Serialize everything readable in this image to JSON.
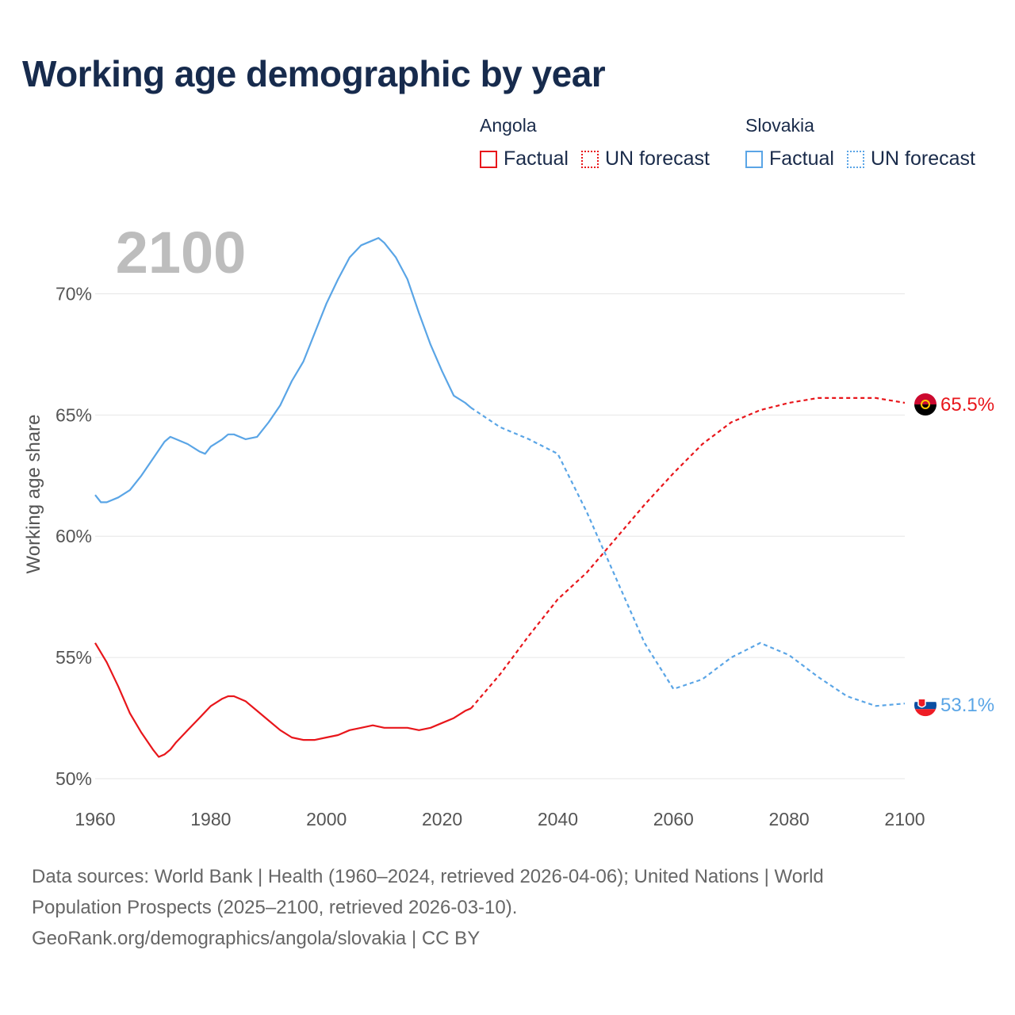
{
  "title": "Working age demographic by year",
  "legend": {
    "angola": {
      "country": "Angola",
      "factual": "Factual",
      "forecast": "UN forecast",
      "color": "#e8161b"
    },
    "slovakia": {
      "country": "Slovakia",
      "factual": "Factual",
      "forecast": "UN forecast",
      "color": "#5aa5e6"
    }
  },
  "year_watermark": "2100",
  "sources": {
    "line1": "Data sources: World Bank | Health (1960–2024, retrieved 2026-04-06); United Nations | World",
    "line2": "Population Prospects (2025–2100, retrieved 2026-03-10).",
    "line3": "GeoRank.org/demographics/angola/slovakia | CC BY"
  },
  "chart_data": {
    "type": "line",
    "title": "Working age demographic by year",
    "xlabel": "",
    "ylabel": "Working age share",
    "xlim": [
      1960,
      2100
    ],
    "ylim": [
      50,
      72.5
    ],
    "x_ticks": [
      "1960",
      "1980",
      "2000",
      "2020",
      "2040",
      "2060",
      "2080",
      "2100"
    ],
    "y_ticks": [
      "50%",
      "55%",
      "60%",
      "65%",
      "70%"
    ],
    "grid": true,
    "series": [
      {
        "name": "Angola",
        "color": "#e8161b",
        "end_label": "65.5%",
        "factual": {
          "x": [
            1960,
            1962,
            1964,
            1966,
            1968,
            1970,
            1971,
            1972,
            1973,
            1974,
            1976,
            1978,
            1980,
            1982,
            1983,
            1984,
            1986,
            1988,
            1990,
            1992,
            1994,
            1996,
            1998,
            2000,
            2002,
            2004,
            2006,
            2008,
            2010,
            2012,
            2014,
            2016,
            2018,
            2020,
            2022,
            2024,
            2025
          ],
          "y": [
            55.6,
            54.8,
            53.8,
            52.7,
            51.9,
            51.2,
            50.9,
            51.0,
            51.2,
            51.5,
            52.0,
            52.5,
            53.0,
            53.3,
            53.4,
            53.4,
            53.2,
            52.8,
            52.4,
            52.0,
            51.7,
            51.6,
            51.6,
            51.7,
            51.8,
            52.0,
            52.1,
            52.2,
            52.1,
            52.1,
            52.1,
            52.0,
            52.1,
            52.3,
            52.5,
            52.8,
            52.9
          ]
        },
        "forecast": {
          "x": [
            2025,
            2030,
            2035,
            2040,
            2045,
            2050,
            2055,
            2060,
            2065,
            2070,
            2075,
            2080,
            2085,
            2090,
            2095,
            2100
          ],
          "y": [
            52.9,
            54.3,
            55.9,
            57.4,
            58.5,
            59.9,
            61.3,
            62.6,
            63.8,
            64.7,
            65.2,
            65.5,
            65.7,
            65.7,
            65.7,
            65.5
          ]
        }
      },
      {
        "name": "Slovakia",
        "color": "#5aa5e6",
        "end_label": "53.1%",
        "factual": {
          "x": [
            1960,
            1961,
            1962,
            1964,
            1966,
            1968,
            1970,
            1972,
            1973,
            1974,
            1976,
            1978,
            1979,
            1980,
            1982,
            1983,
            1984,
            1986,
            1988,
            1990,
            1992,
            1994,
            1996,
            1998,
            2000,
            2002,
            2004,
            2006,
            2008,
            2009,
            2010,
            2012,
            2014,
            2016,
            2018,
            2020,
            2022,
            2024,
            2025
          ],
          "y": [
            61.7,
            61.4,
            61.4,
            61.6,
            61.9,
            62.5,
            63.2,
            63.9,
            64.1,
            64.0,
            63.8,
            63.5,
            63.4,
            63.7,
            64.0,
            64.2,
            64.2,
            64.0,
            64.1,
            64.7,
            65.4,
            66.4,
            67.2,
            68.4,
            69.6,
            70.6,
            71.5,
            72.0,
            72.2,
            72.3,
            72.1,
            71.5,
            70.6,
            69.2,
            67.9,
            66.8,
            65.8,
            65.5,
            65.3
          ]
        },
        "forecast": {
          "x": [
            2025,
            2030,
            2035,
            2040,
            2045,
            2050,
            2055,
            2060,
            2065,
            2070,
            2075,
            2080,
            2085,
            2090,
            2095,
            2100
          ],
          "y": [
            65.3,
            64.5,
            64.0,
            63.4,
            61.0,
            58.3,
            55.6,
            53.7,
            54.1,
            55.0,
            55.6,
            55.1,
            54.2,
            53.4,
            53.0,
            53.1
          ]
        }
      }
    ]
  }
}
